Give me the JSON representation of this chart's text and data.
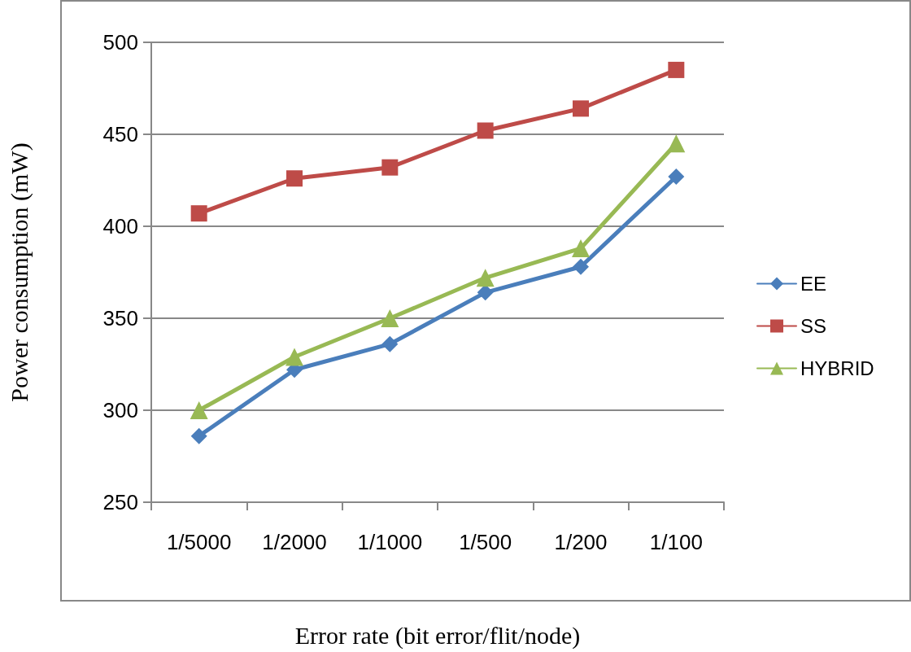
{
  "chart_data": {
    "type": "line",
    "xlabel": "Error rate (bit error/flit/node)",
    "ylabel": "Power consumption (mW)",
    "categories": [
      "1/5000",
      "1/2000",
      "1/1000",
      "1/500",
      "1/200",
      "1/100"
    ],
    "series": [
      {
        "name": "EE",
        "color": "#4a7ebb",
        "marker": "diamond",
        "values": [
          286,
          322,
          336,
          364,
          378,
          427
        ]
      },
      {
        "name": "SS",
        "color": "#be4b48",
        "marker": "square",
        "values": [
          407,
          426,
          432,
          452,
          464,
          485
        ]
      },
      {
        "name": "HYBRID",
        "color": "#98b954",
        "marker": "triangle",
        "values": [
          300,
          329,
          350,
          372,
          388,
          445
        ]
      }
    ],
    "ylim": [
      250,
      500
    ],
    "yticks": [
      250,
      300,
      350,
      400,
      450,
      500
    ],
    "grid": "y",
    "legend": "right",
    "line_style": "solid"
  }
}
